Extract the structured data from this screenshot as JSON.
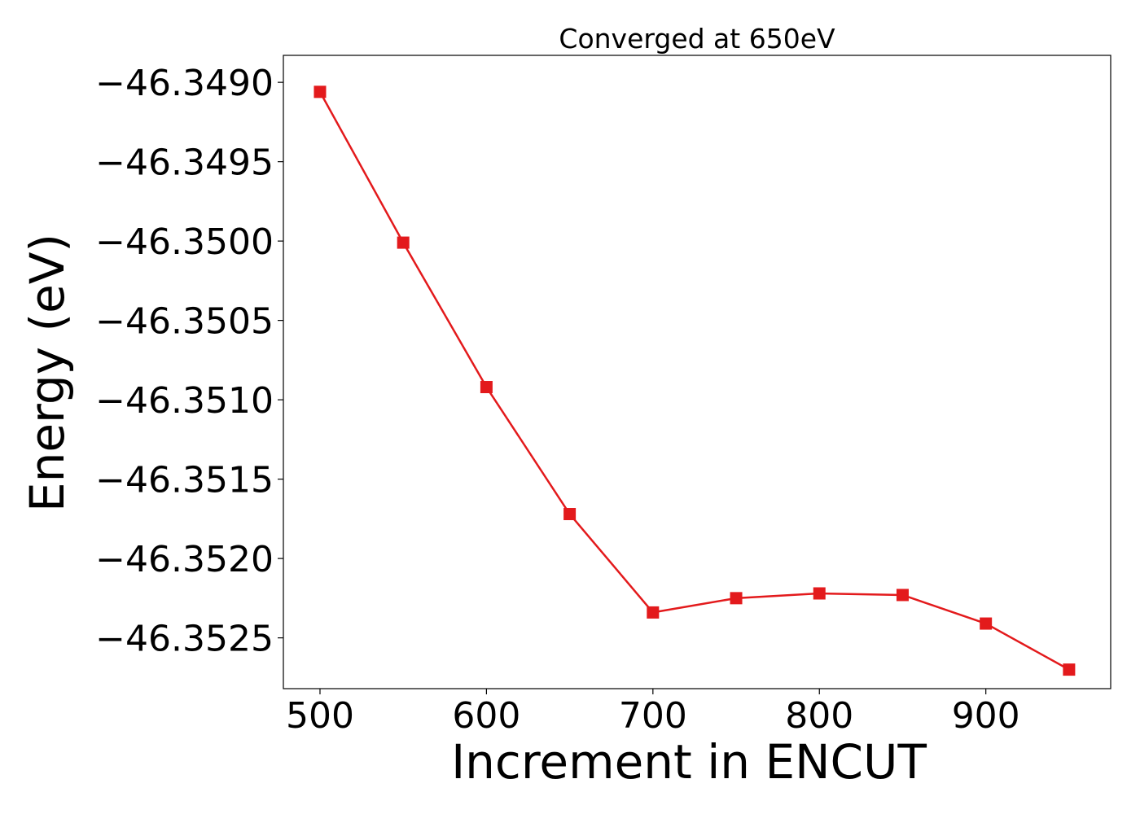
{
  "chart_data": {
    "type": "line",
    "title": "Converged at 650eV",
    "xlabel": "Increment in ENCUT",
    "ylabel": "Energy (eV)",
    "x": [
      500,
      550,
      600,
      650,
      700,
      750,
      800,
      850,
      900,
      950
    ],
    "series": [
      {
        "values": [
          -46.34906,
          -46.35001,
          -46.35092,
          -46.35172,
          -46.35234,
          -46.35225,
          -46.35222,
          -46.35223,
          -46.35241,
          -46.3527
        ],
        "color": "#e31a1c",
        "marker": "square"
      }
    ],
    "xlim": [
      478,
      975
    ],
    "ylim": [
      -46.35282,
      -46.34883
    ],
    "xticks": [
      500,
      600,
      700,
      800,
      900
    ],
    "xtick_labels": [
      "500",
      "600",
      "700",
      "800",
      "900"
    ],
    "yticks": [
      -46.349,
      -46.3495,
      -46.35,
      -46.3505,
      -46.351,
      -46.3515,
      -46.352,
      -46.3525
    ],
    "ytick_labels": [
      "−46.3490",
      "−46.3495",
      "−46.3500",
      "−46.3505",
      "−46.3510",
      "−46.3515",
      "−46.3520",
      "−46.3525"
    ],
    "grid": false,
    "legend": "none"
  }
}
